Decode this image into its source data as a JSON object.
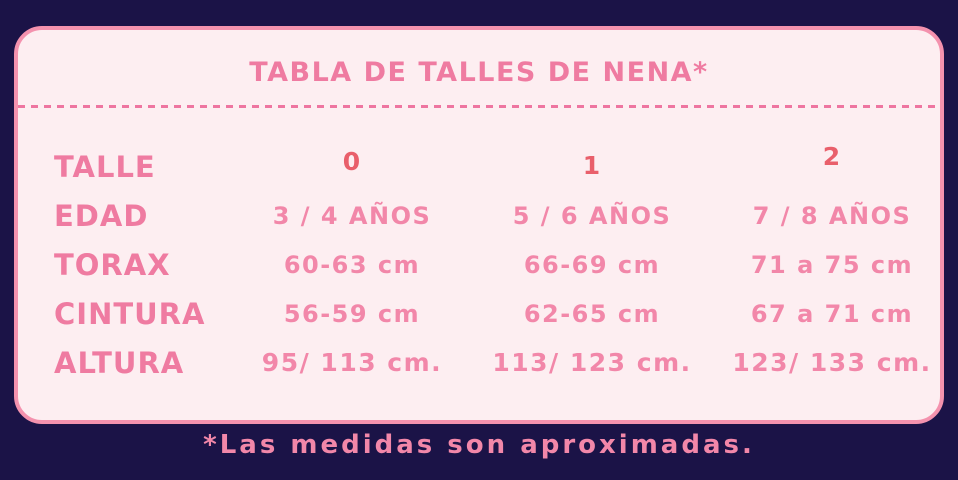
{
  "chart_data": {
    "type": "table",
    "title": "TABLA DE TALLES DE NENA*",
    "row_headers": [
      "TALLE",
      "EDAD",
      "TORAX",
      "CINTURA",
      "ALTURA"
    ],
    "columns": [
      "0",
      "1",
      "2"
    ],
    "rows": [
      {
        "label": "TALLE",
        "values": [
          "0",
          "1",
          "2"
        ]
      },
      {
        "label": "EDAD",
        "values": [
          "3 / 4 AÑOS",
          "5 / 6 AÑOS",
          "7 / 8 AÑOS"
        ]
      },
      {
        "label": "TORAX",
        "values": [
          "60-63 cm",
          "66-69 cm",
          "71 a 75 cm"
        ]
      },
      {
        "label": "CINTURA",
        "values": [
          "56-59 cm",
          "62-65 cm",
          "67 a 71 cm"
        ]
      },
      {
        "label": "ALTURA",
        "values": [
          "95/ 113 cm.",
          "113/ 123 cm.",
          "123/ 133 cm."
        ]
      }
    ],
    "footnote": "*Las medidas son aproximadas.",
    "legend_position": "none",
    "grid": false
  },
  "colors": {
    "page_background": "#1b1347",
    "card_background": "#fdeef1",
    "card_border": "#f492ae",
    "title_pink": "#ef7ba1",
    "label_pink": "#ef7ba1",
    "value_pink": "#f287a9",
    "size_number_red": "#e95f6b",
    "divider_pink": "#ee75a0"
  }
}
